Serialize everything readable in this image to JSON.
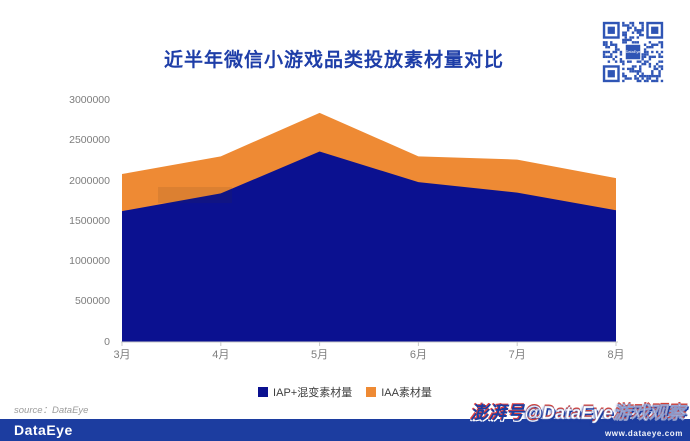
{
  "header": {
    "title": "近半年微信小游戏品类投放素材量对比",
    "title_color": "#1E3EA8"
  },
  "qr": {
    "label": "qr-code",
    "color": "#2F55B5",
    "center_text": "DataEye"
  },
  "chart_data": {
    "type": "area",
    "stacked": true,
    "title": "近半年微信小游戏品类投放素材量对比",
    "categories": [
      "3月",
      "4月",
      "5月",
      "6月",
      "7月",
      "8月"
    ],
    "series": [
      {
        "name": "IAP+混变素材量",
        "color": "#0B1190",
        "values": [
          1620000,
          1840000,
          2360000,
          1980000,
          1850000,
          1630000
        ]
      },
      {
        "name": "IAA素材量",
        "color": "#EE8A34",
        "values": [
          460000,
          460000,
          480000,
          320000,
          410000,
          400000
        ]
      }
    ],
    "totals": [
      2080000,
      2300000,
      2840000,
      2300000,
      2260000,
      2030000
    ],
    "xlabel": "",
    "ylabel": "",
    "ylim": [
      0,
      3000000
    ],
    "yticks": [
      0,
      500000,
      1000000,
      1500000,
      2000000,
      2500000,
      3000000
    ],
    "grid": false,
    "legend_position": "bottom",
    "axis_color": "#c9c9c9",
    "tick_label_color": "#7d7d7d"
  },
  "footer": {
    "source": "source：DataEye",
    "brand": "DataEye",
    "watermark_badge": "澎湃号",
    "watermark_account": "@DataEye游戏观察",
    "website": "www.dataeye.com",
    "bar_color": "#1C3DA0"
  }
}
